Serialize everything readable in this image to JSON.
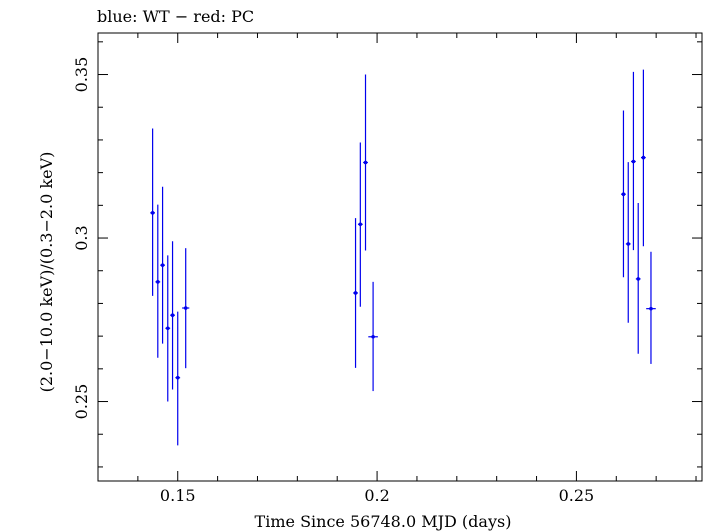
{
  "chart_data": {
    "type": "scatter",
    "title": "blue: WT − red: PC",
    "xlabel": "Time Since 56748.0 MJD (days)",
    "ylabel": "(2.0−10.0 keV)/(0.3−2.0 keV)",
    "xlim": [
      0.13,
      0.2815
    ],
    "ylim": [
      0.2257,
      0.3627
    ],
    "x_ticks": [
      {
        "value": 0.15,
        "label": "0.15"
      },
      {
        "value": 0.2,
        "label": "0.2"
      },
      {
        "value": 0.25,
        "label": "0.25"
      }
    ],
    "y_ticks": [
      {
        "value": 0.25,
        "label": "0.25"
      },
      {
        "value": 0.3,
        "label": "0.3"
      },
      {
        "value": 0.35,
        "label": "0.35"
      }
    ],
    "grid": false,
    "series": [
      {
        "name": "WT",
        "color": "#0000ee",
        "points": [
          {
            "x": 0.1437,
            "y": 0.3077,
            "ylo": 0.2823,
            "yhi": 0.3335,
            "xerr": 0.0006
          },
          {
            "x": 0.145,
            "y": 0.2866,
            "ylo": 0.2634,
            "yhi": 0.3102,
            "xerr": 0.0006
          },
          {
            "x": 0.1462,
            "y": 0.2917,
            "ylo": 0.2677,
            "yhi": 0.3157,
            "xerr": 0.0006
          },
          {
            "x": 0.1475,
            "y": 0.2724,
            "ylo": 0.25,
            "yhi": 0.2947,
            "xerr": 0.0006
          },
          {
            "x": 0.1487,
            "y": 0.2764,
            "ylo": 0.2537,
            "yhi": 0.299,
            "xerr": 0.0006
          },
          {
            "x": 0.15,
            "y": 0.2573,
            "ylo": 0.2366,
            "yhi": 0.2775,
            "xerr": 0.0006
          },
          {
            "x": 0.152,
            "y": 0.2786,
            "ylo": 0.2602,
            "yhi": 0.2969,
            "xerr": 0.0009
          },
          {
            "x": 0.1946,
            "y": 0.2832,
            "ylo": 0.2603,
            "yhi": 0.3061,
            "xerr": 0.0006
          },
          {
            "x": 0.1958,
            "y": 0.3042,
            "ylo": 0.279,
            "yhi": 0.3292,
            "xerr": 0.0006
          },
          {
            "x": 0.1971,
            "y": 0.3231,
            "ylo": 0.2962,
            "yhi": 0.35,
            "xerr": 0.0006
          },
          {
            "x": 0.199,
            "y": 0.2698,
            "ylo": 0.2532,
            "yhi": 0.2866,
            "xerr": 0.0012
          },
          {
            "x": 0.2618,
            "y": 0.3134,
            "ylo": 0.288,
            "yhi": 0.339,
            "xerr": 0.0006
          },
          {
            "x": 0.263,
            "y": 0.2982,
            "ylo": 0.2741,
            "yhi": 0.3232,
            "xerr": 0.0006
          },
          {
            "x": 0.2643,
            "y": 0.3234,
            "ylo": 0.2963,
            "yhi": 0.3508,
            "xerr": 0.0006
          },
          {
            "x": 0.2655,
            "y": 0.2875,
            "ylo": 0.2646,
            "yhi": 0.3107,
            "xerr": 0.0006
          },
          {
            "x": 0.2668,
            "y": 0.3246,
            "ylo": 0.2975,
            "yhi": 0.3515,
            "xerr": 0.0006
          },
          {
            "x": 0.2687,
            "y": 0.2784,
            "ylo": 0.2615,
            "yhi": 0.2958,
            "xerr": 0.0012
          }
        ]
      }
    ]
  }
}
